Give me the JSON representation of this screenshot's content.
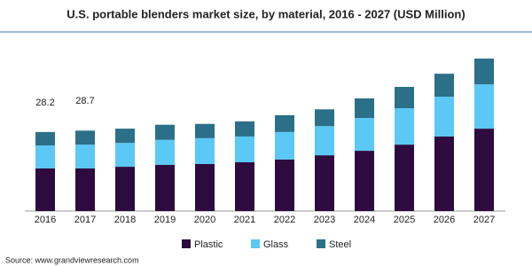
{
  "chart_data": {
    "type": "stacked_bar",
    "title": "U.S. portable blenders market size, by material, 2016 - 2027 (USD Million)",
    "categories": [
      "2016",
      "2017",
      "2018",
      "2019",
      "2020",
      "2021",
      "2022",
      "2023",
      "2024",
      "2025",
      "2026",
      "2027"
    ],
    "series": [
      {
        "name": "Plastic",
        "color": "#2d0b3e",
        "values": [
          15.2,
          15.2,
          15.8,
          16.5,
          16.8,
          17.4,
          18.4,
          19.9,
          21.5,
          23.7,
          26.6,
          29.4
        ]
      },
      {
        "name": "Glass",
        "color": "#5bc8f5",
        "values": [
          8.2,
          8.5,
          8.5,
          8.9,
          9.2,
          9.2,
          9.8,
          10.4,
          11.7,
          13.0,
          14.2,
          15.8
        ]
      },
      {
        "name": "Steel",
        "color": "#2b6f88",
        "values": [
          4.8,
          5.0,
          5.1,
          5.4,
          5.1,
          5.4,
          6.0,
          6.0,
          7.0,
          7.6,
          8.2,
          9.2
        ]
      }
    ],
    "total_labels": [
      28.2,
      28.7
    ],
    "source": "Source: www.grandviewresearch.com"
  }
}
